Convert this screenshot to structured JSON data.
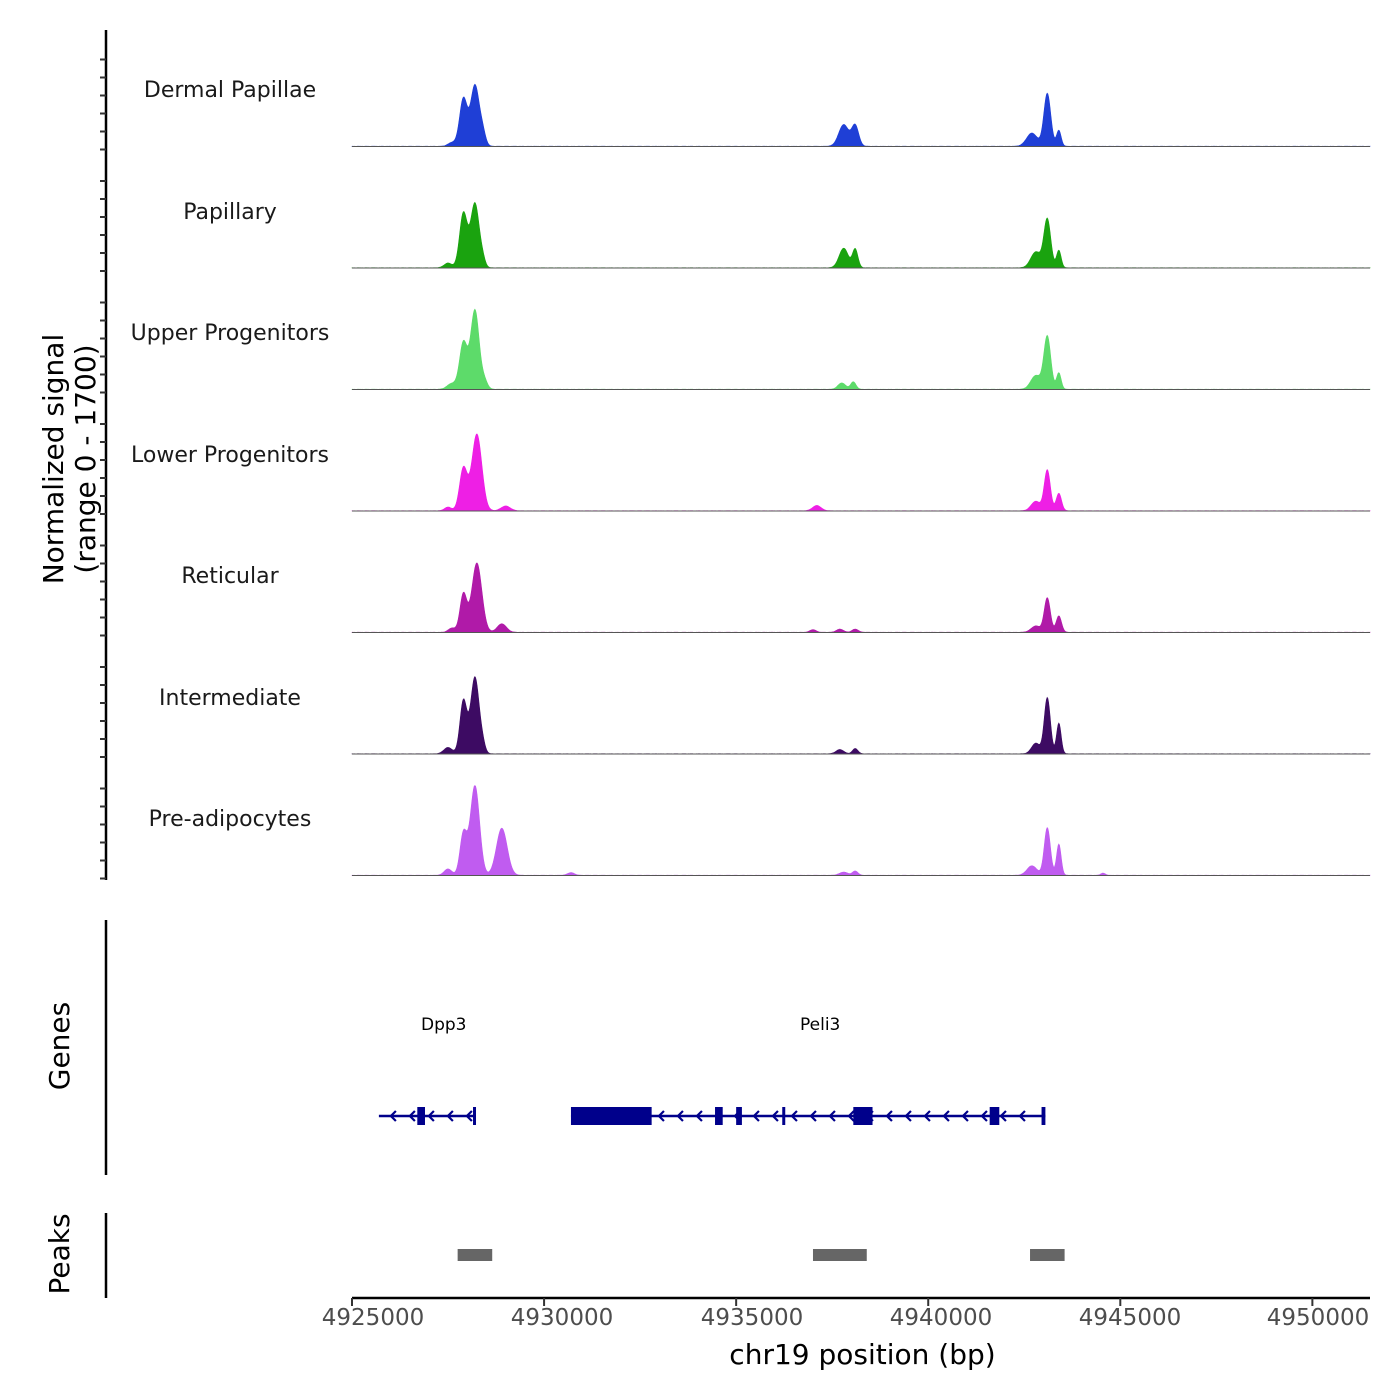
{
  "chart_data": {
    "type": "area",
    "xlabel": "chr19 position (bp)",
    "ylabel_line1": "Normalized signal",
    "ylabel_line2": "(range 0 - 1700)",
    "ylim": [
      0,
      1700
    ],
    "xlim": [
      4925000,
      4951500
    ],
    "xticks": [
      4925000,
      4930000,
      4935000,
      4940000,
      4945000,
      4950000
    ],
    "xtick_labels": [
      "4925000",
      "4930000",
      "4935000",
      "4940000",
      "4945000",
      "4950000"
    ],
    "tracks": [
      {
        "name": "Dermal Papillae",
        "color": "#1f3fd6",
        "peaks": [
          {
            "x": 4927600,
            "w": 100,
            "h": 70
          },
          {
            "x": 4927900,
            "w": 100,
            "h": 900
          },
          {
            "x": 4928200,
            "w": 110,
            "h": 1150
          },
          {
            "x": 4928400,
            "w": 80,
            "h": 240
          },
          {
            "x": 4937800,
            "w": 130,
            "h": 410
          },
          {
            "x": 4938100,
            "w": 90,
            "h": 390
          },
          {
            "x": 4942700,
            "w": 140,
            "h": 250
          },
          {
            "x": 4943100,
            "w": 90,
            "h": 1000
          },
          {
            "x": 4943400,
            "w": 60,
            "h": 300
          }
        ]
      },
      {
        "name": "Papillary",
        "color": "#1aa30f",
        "peaks": [
          {
            "x": 4927500,
            "w": 100,
            "h": 90
          },
          {
            "x": 4927900,
            "w": 100,
            "h": 1030
          },
          {
            "x": 4928200,
            "w": 110,
            "h": 1220
          },
          {
            "x": 4928400,
            "w": 70,
            "h": 130
          },
          {
            "x": 4937800,
            "w": 120,
            "h": 370
          },
          {
            "x": 4938100,
            "w": 70,
            "h": 350
          },
          {
            "x": 4942800,
            "w": 130,
            "h": 300
          },
          {
            "x": 4943100,
            "w": 90,
            "h": 920
          },
          {
            "x": 4943400,
            "w": 60,
            "h": 330
          }
        ]
      },
      {
        "name": "Upper Progenitors",
        "color": "#5ddb6a",
        "peaks": [
          {
            "x": 4927600,
            "w": 120,
            "h": 110
          },
          {
            "x": 4927900,
            "w": 100,
            "h": 880
          },
          {
            "x": 4928200,
            "w": 110,
            "h": 1500
          },
          {
            "x": 4928450,
            "w": 80,
            "h": 150
          },
          {
            "x": 4937750,
            "w": 100,
            "h": 120
          },
          {
            "x": 4938050,
            "w": 70,
            "h": 140
          },
          {
            "x": 4942800,
            "w": 130,
            "h": 260
          },
          {
            "x": 4943100,
            "w": 90,
            "h": 1000
          },
          {
            "x": 4943400,
            "w": 60,
            "h": 310
          }
        ]
      },
      {
        "name": "Lower Progenitors",
        "color": "#ee1fe5",
        "peaks": [
          {
            "x": 4927500,
            "w": 90,
            "h": 70
          },
          {
            "x": 4927900,
            "w": 100,
            "h": 800
          },
          {
            "x": 4928250,
            "w": 130,
            "h": 1450
          },
          {
            "x": 4929000,
            "w": 120,
            "h": 90
          },
          {
            "x": 4937100,
            "w": 110,
            "h": 100
          },
          {
            "x": 4942800,
            "w": 120,
            "h": 180
          },
          {
            "x": 4943100,
            "w": 80,
            "h": 770
          },
          {
            "x": 4943400,
            "w": 70,
            "h": 330
          }
        ]
      },
      {
        "name": "Reticular",
        "color": "#b01aa8",
        "peaks": [
          {
            "x": 4927600,
            "w": 90,
            "h": 80
          },
          {
            "x": 4927900,
            "w": 90,
            "h": 720
          },
          {
            "x": 4928250,
            "w": 130,
            "h": 1310
          },
          {
            "x": 4928900,
            "w": 120,
            "h": 160
          },
          {
            "x": 4937000,
            "w": 80,
            "h": 50
          },
          {
            "x": 4937700,
            "w": 90,
            "h": 60
          },
          {
            "x": 4938100,
            "w": 80,
            "h": 60
          },
          {
            "x": 4942800,
            "w": 120,
            "h": 120
          },
          {
            "x": 4943100,
            "w": 80,
            "h": 650
          },
          {
            "x": 4943400,
            "w": 70,
            "h": 310
          }
        ]
      },
      {
        "name": "Intermediate",
        "color": "#3d0b63",
        "peaks": [
          {
            "x": 4927500,
            "w": 110,
            "h": 120
          },
          {
            "x": 4927900,
            "w": 90,
            "h": 1000
          },
          {
            "x": 4928200,
            "w": 110,
            "h": 1450
          },
          {
            "x": 4928400,
            "w": 70,
            "h": 140
          },
          {
            "x": 4937700,
            "w": 100,
            "h": 80
          },
          {
            "x": 4938100,
            "w": 70,
            "h": 100
          },
          {
            "x": 4942800,
            "w": 110,
            "h": 200
          },
          {
            "x": 4943100,
            "w": 80,
            "h": 1060
          },
          {
            "x": 4943400,
            "w": 60,
            "h": 580
          }
        ]
      },
      {
        "name": "Pre-adipocytes",
        "color": "#c05cf0",
        "peaks": [
          {
            "x": 4927500,
            "w": 100,
            "h": 120
          },
          {
            "x": 4927900,
            "w": 90,
            "h": 780
          },
          {
            "x": 4928200,
            "w": 120,
            "h": 1700
          },
          {
            "x": 4928900,
            "w": 140,
            "h": 890
          },
          {
            "x": 4930700,
            "w": 90,
            "h": 50
          },
          {
            "x": 4937800,
            "w": 110,
            "h": 60
          },
          {
            "x": 4938100,
            "w": 70,
            "h": 80
          },
          {
            "x": 4942700,
            "w": 130,
            "h": 180
          },
          {
            "x": 4943100,
            "w": 80,
            "h": 900
          },
          {
            "x": 4943400,
            "w": 60,
            "h": 590
          },
          {
            "x": 4944550,
            "w": 60,
            "h": 40
          }
        ]
      }
    ],
    "genes": [
      {
        "name": "Dpp3",
        "strand": "-",
        "start": 4925700,
        "end": 4928200,
        "exons": [
          [
            4926700,
            4926900
          ],
          [
            4928150,
            4928220
          ]
        ]
      },
      {
        "name": "Peli3",
        "strand": "-",
        "start": 4930700,
        "end": 4943050,
        "exons": [
          [
            4930700,
            4932800
          ],
          [
            4934450,
            4934650
          ],
          [
            4935000,
            4935150
          ],
          [
            4936200,
            4936270
          ],
          [
            4938050,
            4938550
          ],
          [
            4941600,
            4941850
          ],
          [
            4942950,
            4943050
          ]
        ]
      }
    ],
    "peaks_track": [
      [
        4927750,
        4928650
      ],
      [
        4937000,
        4938400
      ],
      [
        4942650,
        4943550
      ]
    ],
    "panel_labels": {
      "genes": "Genes",
      "peaks": "Peaks"
    }
  }
}
